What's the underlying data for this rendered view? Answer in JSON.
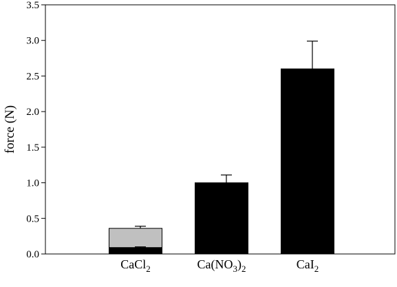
{
  "chart_data": {
    "type": "bar",
    "stacked": true,
    "title": "",
    "xlabel": "",
    "ylabel": "force (N)",
    "ylim": [
      0,
      3.5
    ],
    "yticks": [
      0.0,
      0.5,
      1.0,
      1.5,
      2.0,
      2.5,
      3.0,
      3.5
    ],
    "ytick_labels": [
      "0.0",
      "0.5",
      "1.0",
      "1.5",
      "2.0",
      "2.5",
      "3.0",
      "3.5"
    ],
    "grid": false,
    "legend": "none",
    "categories": [
      {
        "base": "CaCl",
        "sub": "2",
        "tail": ""
      },
      {
        "base": "Ca(NO",
        "sub": "3",
        "tail": ")",
        "sub2": "2"
      },
      {
        "base": "CaI",
        "sub": "2",
        "tail": ""
      }
    ],
    "series": [
      {
        "values": [
          0.09,
          1.0,
          2.6
        ],
        "errors": [
          0.01,
          0.11,
          0.39
        ],
        "color": "#000000"
      },
      {
        "values": [
          0.27,
          0,
          0
        ],
        "errors": [
          0.03,
          0,
          0
        ],
        "color": "#c0c0c0"
      }
    ]
  }
}
